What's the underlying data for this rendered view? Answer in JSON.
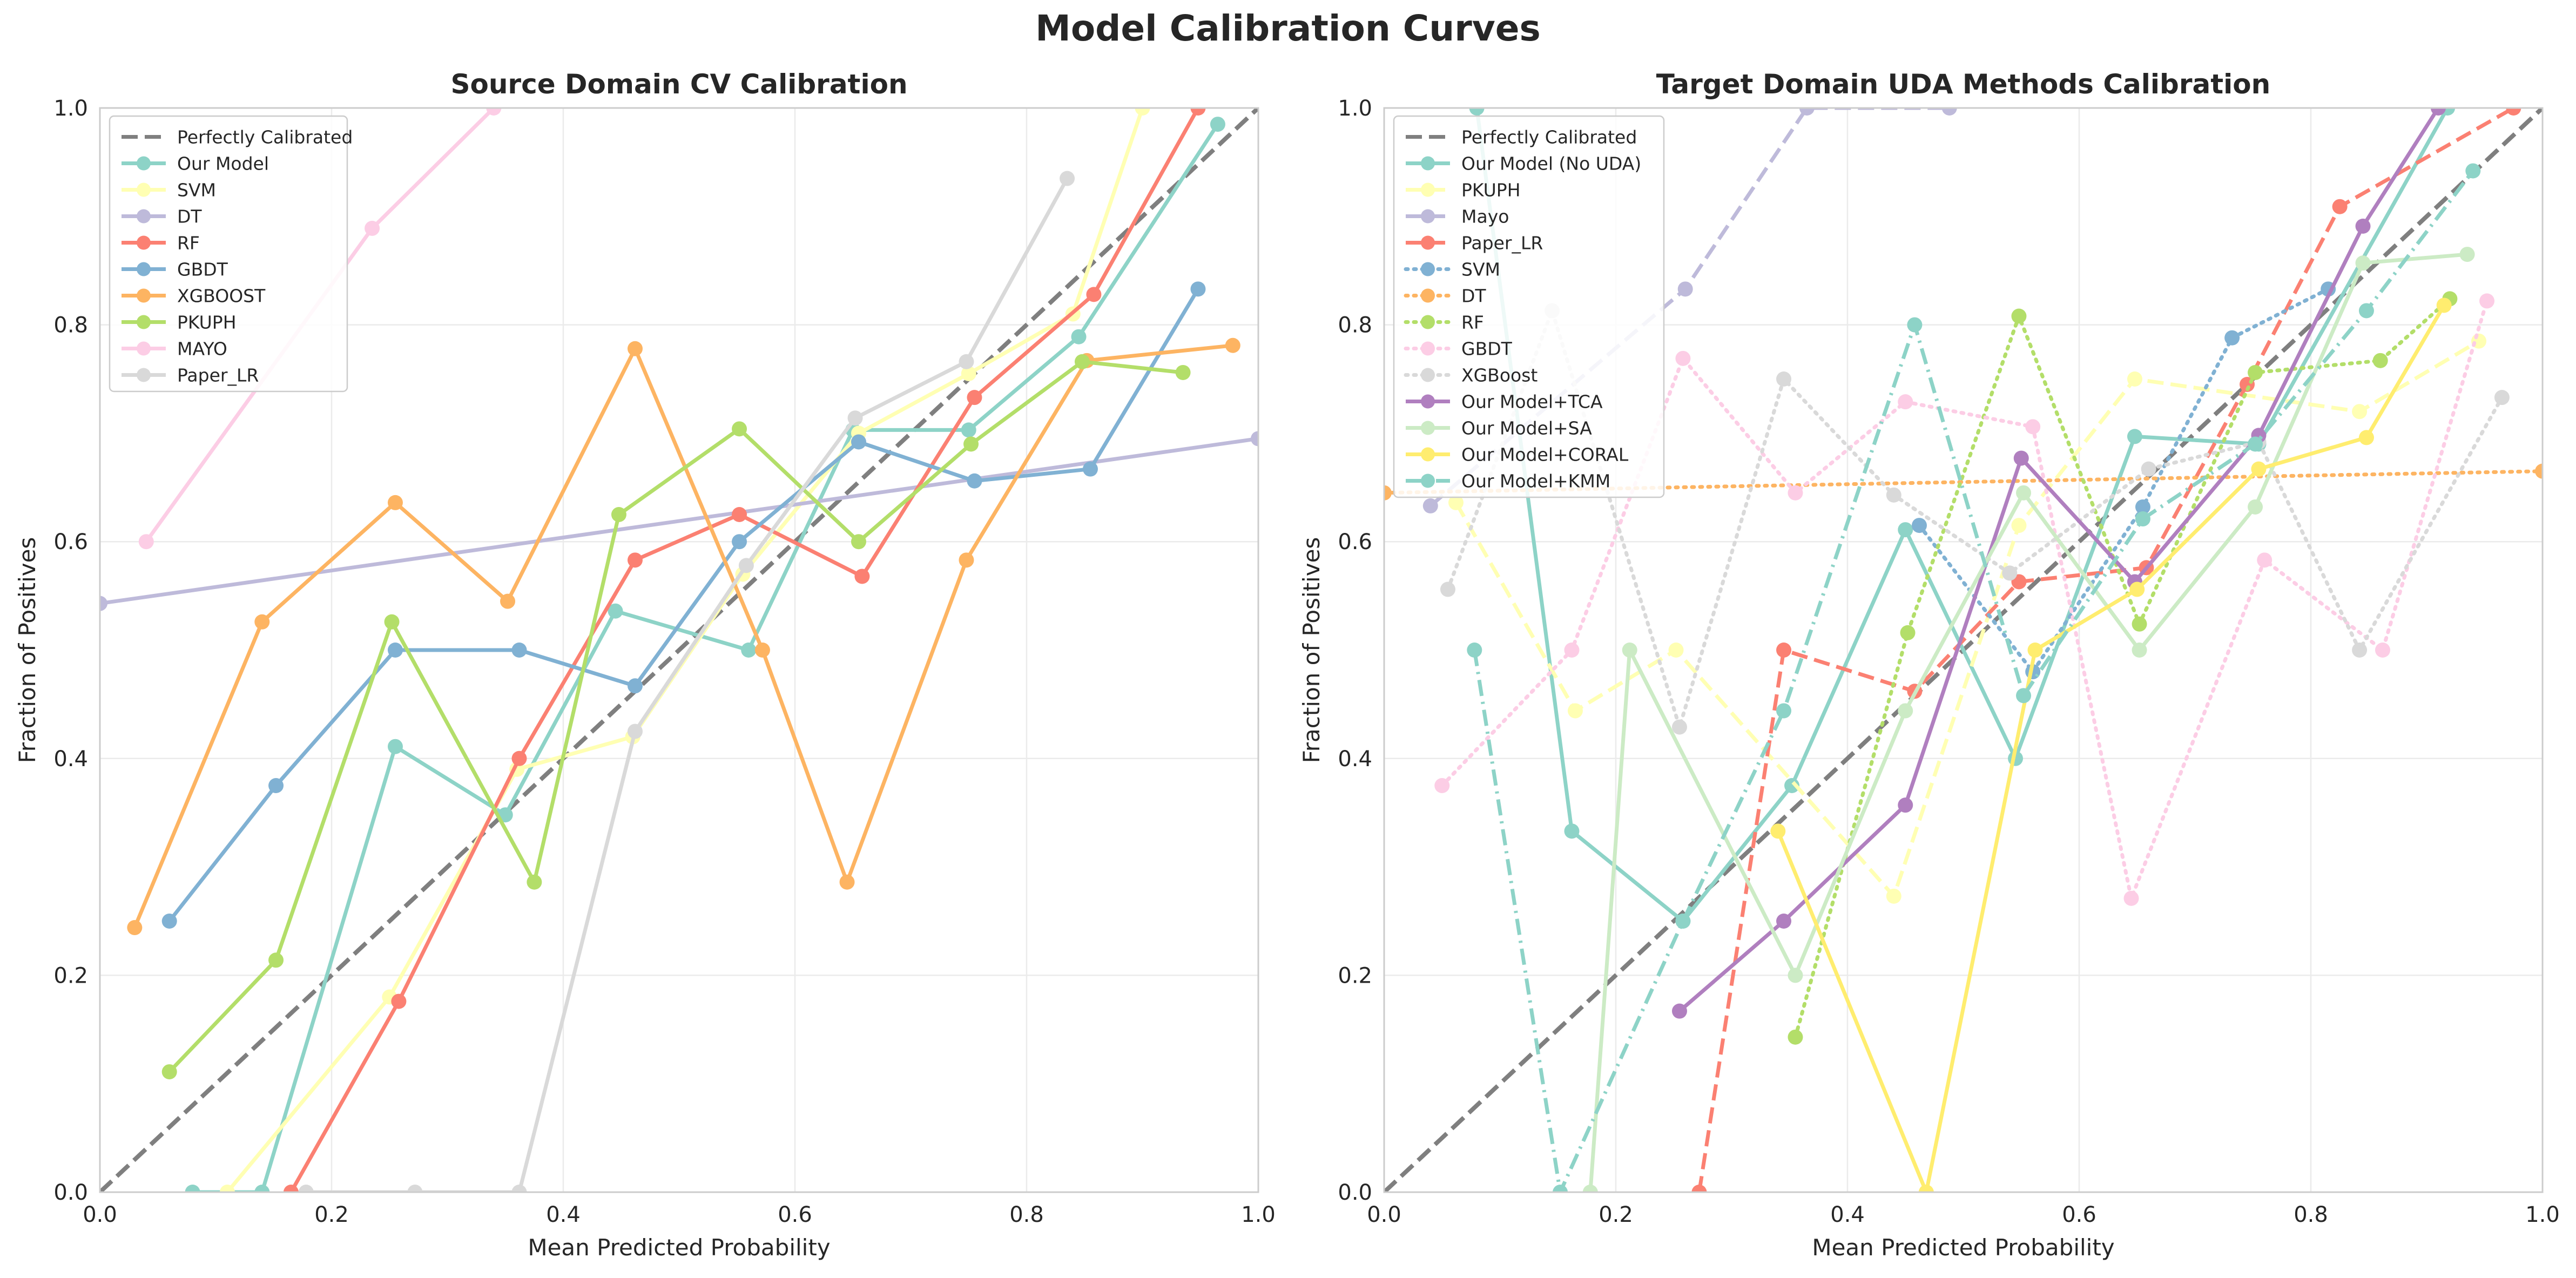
{
  "title": "Model Calibration Curves",
  "chart_data": [
    {
      "type": "line",
      "title": "Source Domain CV Calibration",
      "xlabel": "Mean Predicted Probability",
      "ylabel": "Fraction of Positives",
      "xlim": [
        0,
        1
      ],
      "ylim": [
        0,
        1
      ],
      "xticks": [
        "0.0",
        "0.2",
        "0.4",
        "0.6",
        "0.8",
        "1.0"
      ],
      "yticks": [
        "0.0",
        "0.2",
        "0.4",
        "0.6",
        "0.8",
        "1.0"
      ],
      "grid": true,
      "legend": "upper-left",
      "series": [
        {
          "name": "Perfectly Calibrated",
          "color": "#7f7f7f",
          "style": "dashed",
          "markers": false,
          "x": [
            0,
            1
          ],
          "y": [
            0,
            1
          ]
        },
        {
          "name": "Our Model",
          "color": "#8dd3c7",
          "style": "solid",
          "markers": true,
          "x": [
            0.08,
            0.14,
            0.255,
            0.35,
            0.445,
            0.56,
            0.65,
            0.75,
            0.845,
            0.965
          ],
          "y": [
            0.0,
            0.0,
            0.411,
            0.348,
            0.536,
            0.5,
            0.703,
            0.703,
            0.789,
            0.985
          ]
        },
        {
          "name": "SVM",
          "color": "#ffffb3",
          "style": "solid",
          "markers": true,
          "x": [
            0.11,
            0.25,
            0.36,
            0.46,
            0.555,
            0.655,
            0.75,
            0.84,
            0.9
          ],
          "y": [
            0.0,
            0.18,
            0.39,
            0.42,
            0.57,
            0.7,
            0.755,
            0.81,
            1.0
          ]
        },
        {
          "name": "DT",
          "color": "#bebada",
          "style": "solid",
          "markers": true,
          "x": [
            0.0,
            1.0
          ],
          "y": [
            0.543,
            0.695
          ]
        },
        {
          "name": "RF",
          "color": "#fb8072",
          "style": "solid",
          "markers": true,
          "x": [
            0.165,
            0.258,
            0.362,
            0.462,
            0.552,
            0.658,
            0.755,
            0.858,
            0.948
          ],
          "y": [
            0.0,
            0.176,
            0.4,
            0.583,
            0.625,
            0.568,
            0.733,
            0.828,
            1.0
          ]
        },
        {
          "name": "GBDT",
          "color": "#80b1d3",
          "style": "solid",
          "markers": true,
          "x": [
            0.06,
            0.152,
            0.255,
            0.362,
            0.462,
            0.552,
            0.655,
            0.755,
            0.855,
            0.948
          ],
          "y": [
            0.25,
            0.375,
            0.5,
            0.5,
            0.467,
            0.6,
            0.692,
            0.656,
            0.667,
            0.833
          ]
        },
        {
          "name": "XGBOOST",
          "color": "#fdb462",
          "style": "solid",
          "markers": true,
          "x": [
            0.03,
            0.14,
            0.255,
            0.352,
            0.462,
            0.572,
            0.645,
            0.748,
            0.852,
            0.978
          ],
          "y": [
            0.244,
            0.526,
            0.636,
            0.545,
            0.778,
            0.5,
            0.286,
            0.583,
            0.767,
            0.781
          ]
        },
        {
          "name": "PKUPH",
          "color": "#b3de69",
          "style": "solid",
          "markers": true,
          "x": [
            0.06,
            0.152,
            0.252,
            0.375,
            0.448,
            0.552,
            0.655,
            0.752,
            0.848,
            0.935
          ],
          "y": [
            0.111,
            0.214,
            0.526,
            0.286,
            0.625,
            0.704,
            0.6,
            0.69,
            0.766,
            0.756
          ]
        },
        {
          "name": "MAYO",
          "color": "#fccde5",
          "style": "solid",
          "markers": true,
          "x": [
            0.04,
            0.235,
            0.34
          ],
          "y": [
            0.6,
            0.889,
            1.0
          ]
        },
        {
          "name": "Paper_LR",
          "color": "#d9d9d9",
          "style": "solid",
          "markers": true,
          "x": [
            0.178,
            0.272,
            0.362,
            0.462,
            0.558,
            0.652,
            0.748,
            0.835
          ],
          "y": [
            0.0,
            0.0,
            0.0,
            0.425,
            0.578,
            0.714,
            0.766,
            0.935
          ]
        }
      ]
    },
    {
      "type": "line",
      "title": "Target Domain UDA Methods Calibration",
      "xlabel": "Mean Predicted Probability",
      "ylabel": "Fraction of Positives",
      "xlim": [
        0,
        1
      ],
      "ylim": [
        0,
        1
      ],
      "xticks": [
        "0.0",
        "0.2",
        "0.4",
        "0.6",
        "0.8",
        "1.0"
      ],
      "yticks": [
        "0.0",
        "0.2",
        "0.4",
        "0.6",
        "0.8",
        "1.0"
      ],
      "grid": true,
      "legend": "upper-left",
      "series": [
        {
          "name": "Perfectly Calibrated",
          "color": "#7f7f7f",
          "style": "dashed",
          "markers": false,
          "x": [
            0,
            1
          ],
          "y": [
            0,
            1
          ]
        },
        {
          "name": "Our Model (No UDA)",
          "color": "#8dd3c7",
          "style": "solid",
          "markers": true,
          "x": [
            0.08,
            0.162,
            0.258,
            0.352,
            0.45,
            0.545,
            0.648,
            0.755,
            0.918
          ],
          "y": [
            1.0,
            0.333,
            0.25,
            0.375,
            0.611,
            0.4,
            0.697,
            0.69,
            1.0
          ]
        },
        {
          "name": "PKUPH",
          "color": "#ffffb3",
          "style": "dashed",
          "markers": true,
          "x": [
            0.062,
            0.165,
            0.252,
            0.44,
            0.548,
            0.648,
            0.842,
            0.945
          ],
          "y": [
            0.636,
            0.444,
            0.5,
            0.273,
            0.615,
            0.75,
            0.72,
            0.785
          ]
        },
        {
          "name": "Mayo",
          "color": "#bebada",
          "style": "dashed",
          "markers": true,
          "x": [
            0.04,
            0.26,
            0.365,
            0.488
          ],
          "y": [
            0.633,
            0.833,
            1.0,
            1.0
          ]
        },
        {
          "name": "Paper_LR",
          "color": "#fb8072",
          "style": "dashed",
          "markers": true,
          "x": [
            0.272,
            0.345,
            0.458,
            0.548,
            0.658,
            0.745,
            0.825,
            0.975
          ],
          "y": [
            0.0,
            0.5,
            0.462,
            0.563,
            0.576,
            0.745,
            0.909,
            1.0
          ]
        },
        {
          "name": "SVM",
          "color": "#80b1d3",
          "style": "dotted",
          "markers": true,
          "x": [
            0.462,
            0.56,
            0.655,
            0.732,
            0.815
          ],
          "y": [
            0.615,
            0.48,
            0.632,
            0.788,
            0.833
          ]
        },
        {
          "name": "DT",
          "color": "#fdb462",
          "style": "dotted",
          "markers": true,
          "x": [
            0.0,
            1.0
          ],
          "y": [
            0.645,
            0.665
          ]
        },
        {
          "name": "RF",
          "color": "#b3de69",
          "style": "dotted",
          "markers": true,
          "x": [
            0.355,
            0.452,
            0.548,
            0.652,
            0.752,
            0.86,
            0.92
          ],
          "y": [
            0.143,
            0.516,
            0.808,
            0.524,
            0.756,
            0.767,
            0.824
          ]
        },
        {
          "name": "GBDT",
          "color": "#fccde5",
          "style": "dotted",
          "markers": true,
          "x": [
            0.05,
            0.162,
            0.258,
            0.355,
            0.45,
            0.56,
            0.645,
            0.76,
            0.862,
            0.952
          ],
          "y": [
            0.375,
            0.5,
            0.769,
            0.645,
            0.729,
            0.706,
            0.271,
            0.583,
            0.5,
            0.822
          ]
        },
        {
          "name": "XGBoost",
          "color": "#d9d9d9",
          "style": "dotted",
          "markers": true,
          "x": [
            0.055,
            0.145,
            0.255,
            0.345,
            0.44,
            0.54,
            0.66,
            0.755,
            0.842,
            0.965
          ],
          "y": [
            0.556,
            0.813,
            0.429,
            0.75,
            0.643,
            0.571,
            0.667,
            0.692,
            0.5,
            0.733
          ]
        },
        {
          "name": "Our Model+TCA",
          "color": "#b07fbf",
          "style": "solid",
          "markers": true,
          "x": [
            0.255,
            0.345,
            0.45,
            0.55,
            0.648,
            0.755,
            0.845,
            0.91
          ],
          "y": [
            0.167,
            0.25,
            0.357,
            0.677,
            0.563,
            0.698,
            0.891,
            1.0
          ]
        },
        {
          "name": "Our Model+SA",
          "color": "#ccebc5",
          "style": "solid",
          "markers": true,
          "x": [
            0.178,
            0.212,
            0.355,
            0.45,
            0.552,
            0.652,
            0.752,
            0.845,
            0.935
          ],
          "y": [
            0.0,
            0.5,
            0.2,
            0.444,
            0.645,
            0.5,
            0.632,
            0.857,
            0.865
          ]
        },
        {
          "name": "Our Model+CORAL",
          "color": "#ffed6f",
          "style": "solid",
          "markers": true,
          "x": [
            0.34,
            0.468,
            0.562,
            0.65,
            0.755,
            0.848,
            0.915
          ],
          "y": [
            0.333,
            0.0,
            0.5,
            0.556,
            0.667,
            0.696,
            0.818
          ]
        },
        {
          "name": "Our Model+KMM",
          "color": "#8dd3c7",
          "style": "dashdot",
          "markers": true,
          "x": [
            0.078,
            0.152,
            0.258,
            0.345,
            0.458,
            0.552,
            0.655,
            0.752,
            0.848,
            0.94
          ],
          "y": [
            0.5,
            0.0,
            0.25,
            0.444,
            0.8,
            0.458,
            0.621,
            0.69,
            0.813,
            0.942
          ]
        }
      ]
    }
  ]
}
